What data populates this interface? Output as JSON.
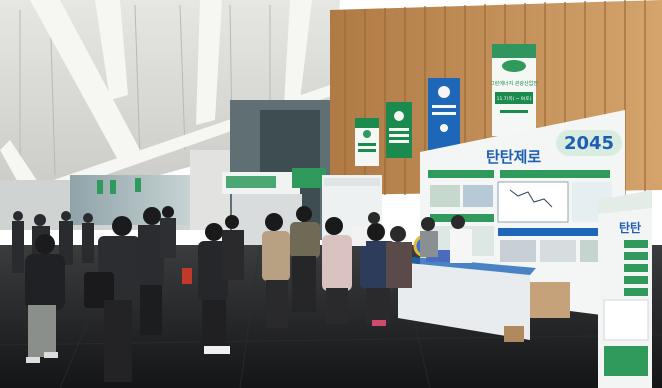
{
  "scene": {
    "description_kind": "photo-expo-hall",
    "colors": {
      "ceiling": "#dcdcd8",
      "ceiling_beam": "#f2f2ef",
      "wood_wall": "#c9955c",
      "wood_dark": "#9c6a3a",
      "floor": "#1e2022",
      "booth_white": "#f4f6f6",
      "accent_green": "#2f9a5c",
      "accent_blue": "#1f5fb3",
      "banner_green": "#1b8a4e",
      "banner_blue": "#1e66b8",
      "counter": "#e9ecee"
    }
  },
  "banners": {
    "festival_title": "그린에너지 관광산업전",
    "festival_dates": "11.7(목) ~ 9(토)",
    "festival_logo": "GreenEnergy"
  },
  "booth": {
    "headline_korean": "탄탄제로",
    "headline_year": "2045",
    "side_headline": "탄탄"
  }
}
